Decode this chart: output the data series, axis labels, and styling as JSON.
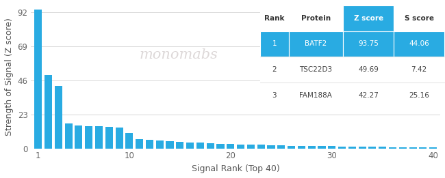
{
  "bar_color": "#29ABE2",
  "bar_values": [
    93.75,
    49.69,
    42.27,
    17.0,
    15.5,
    15.0,
    14.8,
    14.5,
    14.0,
    10.5,
    6.5,
    5.8,
    5.3,
    5.0,
    4.5,
    4.2,
    3.8,
    3.5,
    3.2,
    3.0,
    2.8,
    2.6,
    2.4,
    2.2,
    2.0,
    1.9,
    1.8,
    1.7,
    1.6,
    1.5,
    1.4,
    1.3,
    1.2,
    1.1,
    1.0,
    0.95,
    0.9,
    0.85,
    0.8,
    0.75
  ],
  "xlabel": "Signal Rank (Top 40)",
  "ylabel": "Strength of Signal (Z score)",
  "yticks": [
    0,
    23,
    46,
    69,
    92
  ],
  "xticks": [
    1,
    10,
    20,
    30,
    40
  ],
  "ylim": [
    0,
    97
  ],
  "xlim": [
    0.3,
    40.7
  ],
  "background_color": "#ffffff",
  "grid_color": "#d0d0d0",
  "bar_blue": "#29ABE2",
  "header_row": [
    "Rank",
    "Protein",
    "Z score",
    "S score"
  ],
  "table_rows": [
    [
      "1",
      "BATF2",
      "93.75",
      "44.06"
    ],
    [
      "2",
      "TSC22D3",
      "49.69",
      "7.42"
    ],
    [
      "3",
      "FAM188A",
      "42.27",
      "25.16"
    ]
  ],
  "watermark_text": "monomabs",
  "watermark_color": "#ddd8d8",
  "axis_label_fontsize": 9,
  "tick_fontsize": 8.5
}
